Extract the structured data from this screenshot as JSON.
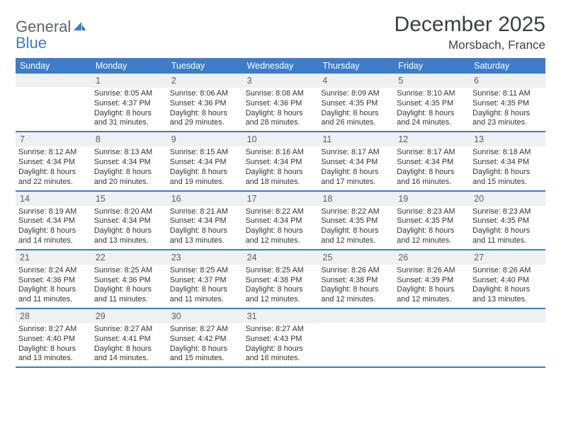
{
  "branding": {
    "logo_word1": "General",
    "logo_word2": "Blue",
    "logo_color_gray": "#5b6670",
    "logo_color_blue": "#3d7cc9"
  },
  "header": {
    "month_title": "December 2025",
    "location": "Morsbach, France"
  },
  "colors": {
    "header_bg": "#3d7cc9",
    "daynum_bg": "#eef0f1",
    "text": "#333333",
    "rule": "#3d7cc9"
  },
  "days_of_week": [
    "Sunday",
    "Monday",
    "Tuesday",
    "Wednesday",
    "Thursday",
    "Friday",
    "Saturday"
  ],
  "weeks": [
    [
      {
        "n": "",
        "sr": "",
        "ss": "",
        "dl": ""
      },
      {
        "n": "1",
        "sr": "Sunrise: 8:05 AM",
        "ss": "Sunset: 4:37 PM",
        "dl": "Daylight: 8 hours and 31 minutes."
      },
      {
        "n": "2",
        "sr": "Sunrise: 8:06 AM",
        "ss": "Sunset: 4:36 PM",
        "dl": "Daylight: 8 hours and 29 minutes."
      },
      {
        "n": "3",
        "sr": "Sunrise: 8:08 AM",
        "ss": "Sunset: 4:36 PM",
        "dl": "Daylight: 8 hours and 28 minutes."
      },
      {
        "n": "4",
        "sr": "Sunrise: 8:09 AM",
        "ss": "Sunset: 4:35 PM",
        "dl": "Daylight: 8 hours and 26 minutes."
      },
      {
        "n": "5",
        "sr": "Sunrise: 8:10 AM",
        "ss": "Sunset: 4:35 PM",
        "dl": "Daylight: 8 hours and 24 minutes."
      },
      {
        "n": "6",
        "sr": "Sunrise: 8:11 AM",
        "ss": "Sunset: 4:35 PM",
        "dl": "Daylight: 8 hours and 23 minutes."
      }
    ],
    [
      {
        "n": "7",
        "sr": "Sunrise: 8:12 AM",
        "ss": "Sunset: 4:34 PM",
        "dl": "Daylight: 8 hours and 22 minutes."
      },
      {
        "n": "8",
        "sr": "Sunrise: 8:13 AM",
        "ss": "Sunset: 4:34 PM",
        "dl": "Daylight: 8 hours and 20 minutes."
      },
      {
        "n": "9",
        "sr": "Sunrise: 8:15 AM",
        "ss": "Sunset: 4:34 PM",
        "dl": "Daylight: 8 hours and 19 minutes."
      },
      {
        "n": "10",
        "sr": "Sunrise: 8:16 AM",
        "ss": "Sunset: 4:34 PM",
        "dl": "Daylight: 8 hours and 18 minutes."
      },
      {
        "n": "11",
        "sr": "Sunrise: 8:17 AM",
        "ss": "Sunset: 4:34 PM",
        "dl": "Daylight: 8 hours and 17 minutes."
      },
      {
        "n": "12",
        "sr": "Sunrise: 8:17 AM",
        "ss": "Sunset: 4:34 PM",
        "dl": "Daylight: 8 hours and 16 minutes."
      },
      {
        "n": "13",
        "sr": "Sunrise: 8:18 AM",
        "ss": "Sunset: 4:34 PM",
        "dl": "Daylight: 8 hours and 15 minutes."
      }
    ],
    [
      {
        "n": "14",
        "sr": "Sunrise: 8:19 AM",
        "ss": "Sunset: 4:34 PM",
        "dl": "Daylight: 8 hours and 14 minutes."
      },
      {
        "n": "15",
        "sr": "Sunrise: 8:20 AM",
        "ss": "Sunset: 4:34 PM",
        "dl": "Daylight: 8 hours and 13 minutes."
      },
      {
        "n": "16",
        "sr": "Sunrise: 8:21 AM",
        "ss": "Sunset: 4:34 PM",
        "dl": "Daylight: 8 hours and 13 minutes."
      },
      {
        "n": "17",
        "sr": "Sunrise: 8:22 AM",
        "ss": "Sunset: 4:34 PM",
        "dl": "Daylight: 8 hours and 12 minutes."
      },
      {
        "n": "18",
        "sr": "Sunrise: 8:22 AM",
        "ss": "Sunset: 4:35 PM",
        "dl": "Daylight: 8 hours and 12 minutes."
      },
      {
        "n": "19",
        "sr": "Sunrise: 8:23 AM",
        "ss": "Sunset: 4:35 PM",
        "dl": "Daylight: 8 hours and 12 minutes."
      },
      {
        "n": "20",
        "sr": "Sunrise: 8:23 AM",
        "ss": "Sunset: 4:35 PM",
        "dl": "Daylight: 8 hours and 11 minutes."
      }
    ],
    [
      {
        "n": "21",
        "sr": "Sunrise: 8:24 AM",
        "ss": "Sunset: 4:36 PM",
        "dl": "Daylight: 8 hours and 11 minutes."
      },
      {
        "n": "22",
        "sr": "Sunrise: 8:25 AM",
        "ss": "Sunset: 4:36 PM",
        "dl": "Daylight: 8 hours and 11 minutes."
      },
      {
        "n": "23",
        "sr": "Sunrise: 8:25 AM",
        "ss": "Sunset: 4:37 PM",
        "dl": "Daylight: 8 hours and 11 minutes."
      },
      {
        "n": "24",
        "sr": "Sunrise: 8:25 AM",
        "ss": "Sunset: 4:38 PM",
        "dl": "Daylight: 8 hours and 12 minutes."
      },
      {
        "n": "25",
        "sr": "Sunrise: 8:26 AM",
        "ss": "Sunset: 4:38 PM",
        "dl": "Daylight: 8 hours and 12 minutes."
      },
      {
        "n": "26",
        "sr": "Sunrise: 8:26 AM",
        "ss": "Sunset: 4:39 PM",
        "dl": "Daylight: 8 hours and 12 minutes."
      },
      {
        "n": "27",
        "sr": "Sunrise: 8:26 AM",
        "ss": "Sunset: 4:40 PM",
        "dl": "Daylight: 8 hours and 13 minutes."
      }
    ],
    [
      {
        "n": "28",
        "sr": "Sunrise: 8:27 AM",
        "ss": "Sunset: 4:40 PM",
        "dl": "Daylight: 8 hours and 13 minutes."
      },
      {
        "n": "29",
        "sr": "Sunrise: 8:27 AM",
        "ss": "Sunset: 4:41 PM",
        "dl": "Daylight: 8 hours and 14 minutes."
      },
      {
        "n": "30",
        "sr": "Sunrise: 8:27 AM",
        "ss": "Sunset: 4:42 PM",
        "dl": "Daylight: 8 hours and 15 minutes."
      },
      {
        "n": "31",
        "sr": "Sunrise: 8:27 AM",
        "ss": "Sunset: 4:43 PM",
        "dl": "Daylight: 8 hours and 16 minutes."
      },
      {
        "n": "",
        "sr": "",
        "ss": "",
        "dl": ""
      },
      {
        "n": "",
        "sr": "",
        "ss": "",
        "dl": ""
      },
      {
        "n": "",
        "sr": "",
        "ss": "",
        "dl": ""
      }
    ]
  ]
}
